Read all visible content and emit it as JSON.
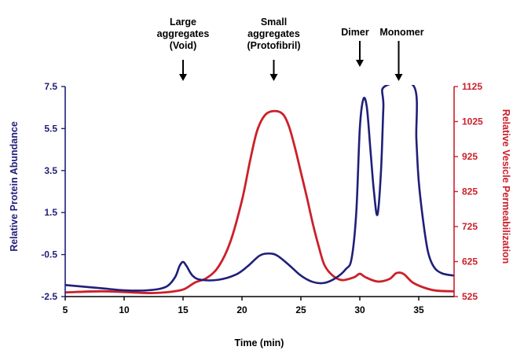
{
  "chart_data": {
    "type": "line",
    "title": "",
    "xlabel": "Time (min)",
    "ylabel_left": "Relative Protein Abundance",
    "ylabel_right": "Relative Vesicle Permeabilization",
    "xlim": [
      5,
      38
    ],
    "ylim_left": [
      -2.5,
      7.5
    ],
    "ylim_right": [
      525,
      1125
    ],
    "x_ticks": [
      5,
      10,
      15,
      20,
      25,
      30,
      35
    ],
    "y_left_ticks": [
      "7.5",
      "5.5",
      "3.5",
      "1.5",
      "-0.5",
      "-2.5"
    ],
    "y_right_ticks": [
      "1125",
      "1025",
      "925",
      "825",
      "725",
      "625",
      "525"
    ],
    "grid": false,
    "colors": {
      "protein": "#1f1f7a",
      "permeabilization": "#cc1f2a",
      "axis_left": "#1f1f7a",
      "axis_right": "#cc1f2a"
    },
    "series": [
      {
        "axis": "left",
        "x": [
          5,
          8,
          10,
          12,
          13.5,
          14.3,
          14.7,
          15.0,
          15.3,
          15.8,
          16.5,
          18,
          19.5,
          20.5,
          21.5,
          22.3,
          23.0,
          24.0,
          25.0,
          26.0,
          27.0,
          28.0,
          28.8,
          29.3,
          29.7,
          30.0,
          30.3,
          30.6,
          30.9,
          31.2,
          31.5,
          31.8,
          32.0,
          32.1,
          34.6,
          34.8,
          35.0,
          35.4,
          35.8,
          36.3,
          37.0,
          38.0
        ],
        "y": [
          -1.95,
          -2.1,
          -2.2,
          -2.2,
          -2.05,
          -1.6,
          -1.05,
          -0.85,
          -1.05,
          -1.5,
          -1.7,
          -1.7,
          -1.45,
          -1.05,
          -0.55,
          -0.45,
          -0.55,
          -1.0,
          -1.5,
          -1.8,
          -1.85,
          -1.6,
          -1.2,
          -0.7,
          1.5,
          5.5,
          6.9,
          6.5,
          4.5,
          2.5,
          1.4,
          3.5,
          6.5,
          7.5,
          7.5,
          5.0,
          3.0,
          1.0,
          -0.4,
          -1.1,
          -1.4,
          -1.5
        ]
      },
      {
        "axis": "right",
        "x": [
          5,
          8,
          10,
          12,
          13.5,
          15.0,
          16.0,
          17.0,
          18.0,
          19.0,
          20.0,
          20.7,
          21.3,
          22.0,
          22.8,
          23.5,
          24.0,
          24.5,
          25.0,
          25.5,
          26.0,
          26.5,
          27.0,
          27.7,
          28.5,
          29.5,
          30.0,
          30.5,
          31.5,
          32.5,
          33.1,
          33.7,
          34.5,
          35.5,
          36.5,
          38.0
        ],
        "y": [
          537,
          540,
          538,
          535,
          537,
          545,
          565,
          578,
          610,
          680,
          800,
          915,
          1000,
          1045,
          1055,
          1045,
          1010,
          950,
          880,
          810,
          735,
          670,
          615,
          585,
          572,
          580,
          590,
          580,
          568,
          575,
          592,
          590,
          565,
          550,
          542,
          540
        ]
      }
    ],
    "annotations": [
      {
        "lines": [
          "Large",
          "aggregates",
          "(Void)"
        ],
        "x": 15.0
      },
      {
        "lines": [
          "Small",
          "aggregates",
          "(Protofibril)"
        ],
        "x": 22.7
      },
      {
        "lines": [
          "Dimer"
        ],
        "x": 30.0
      },
      {
        "lines": [
          "Monomer"
        ],
        "x": 33.3
      }
    ]
  }
}
